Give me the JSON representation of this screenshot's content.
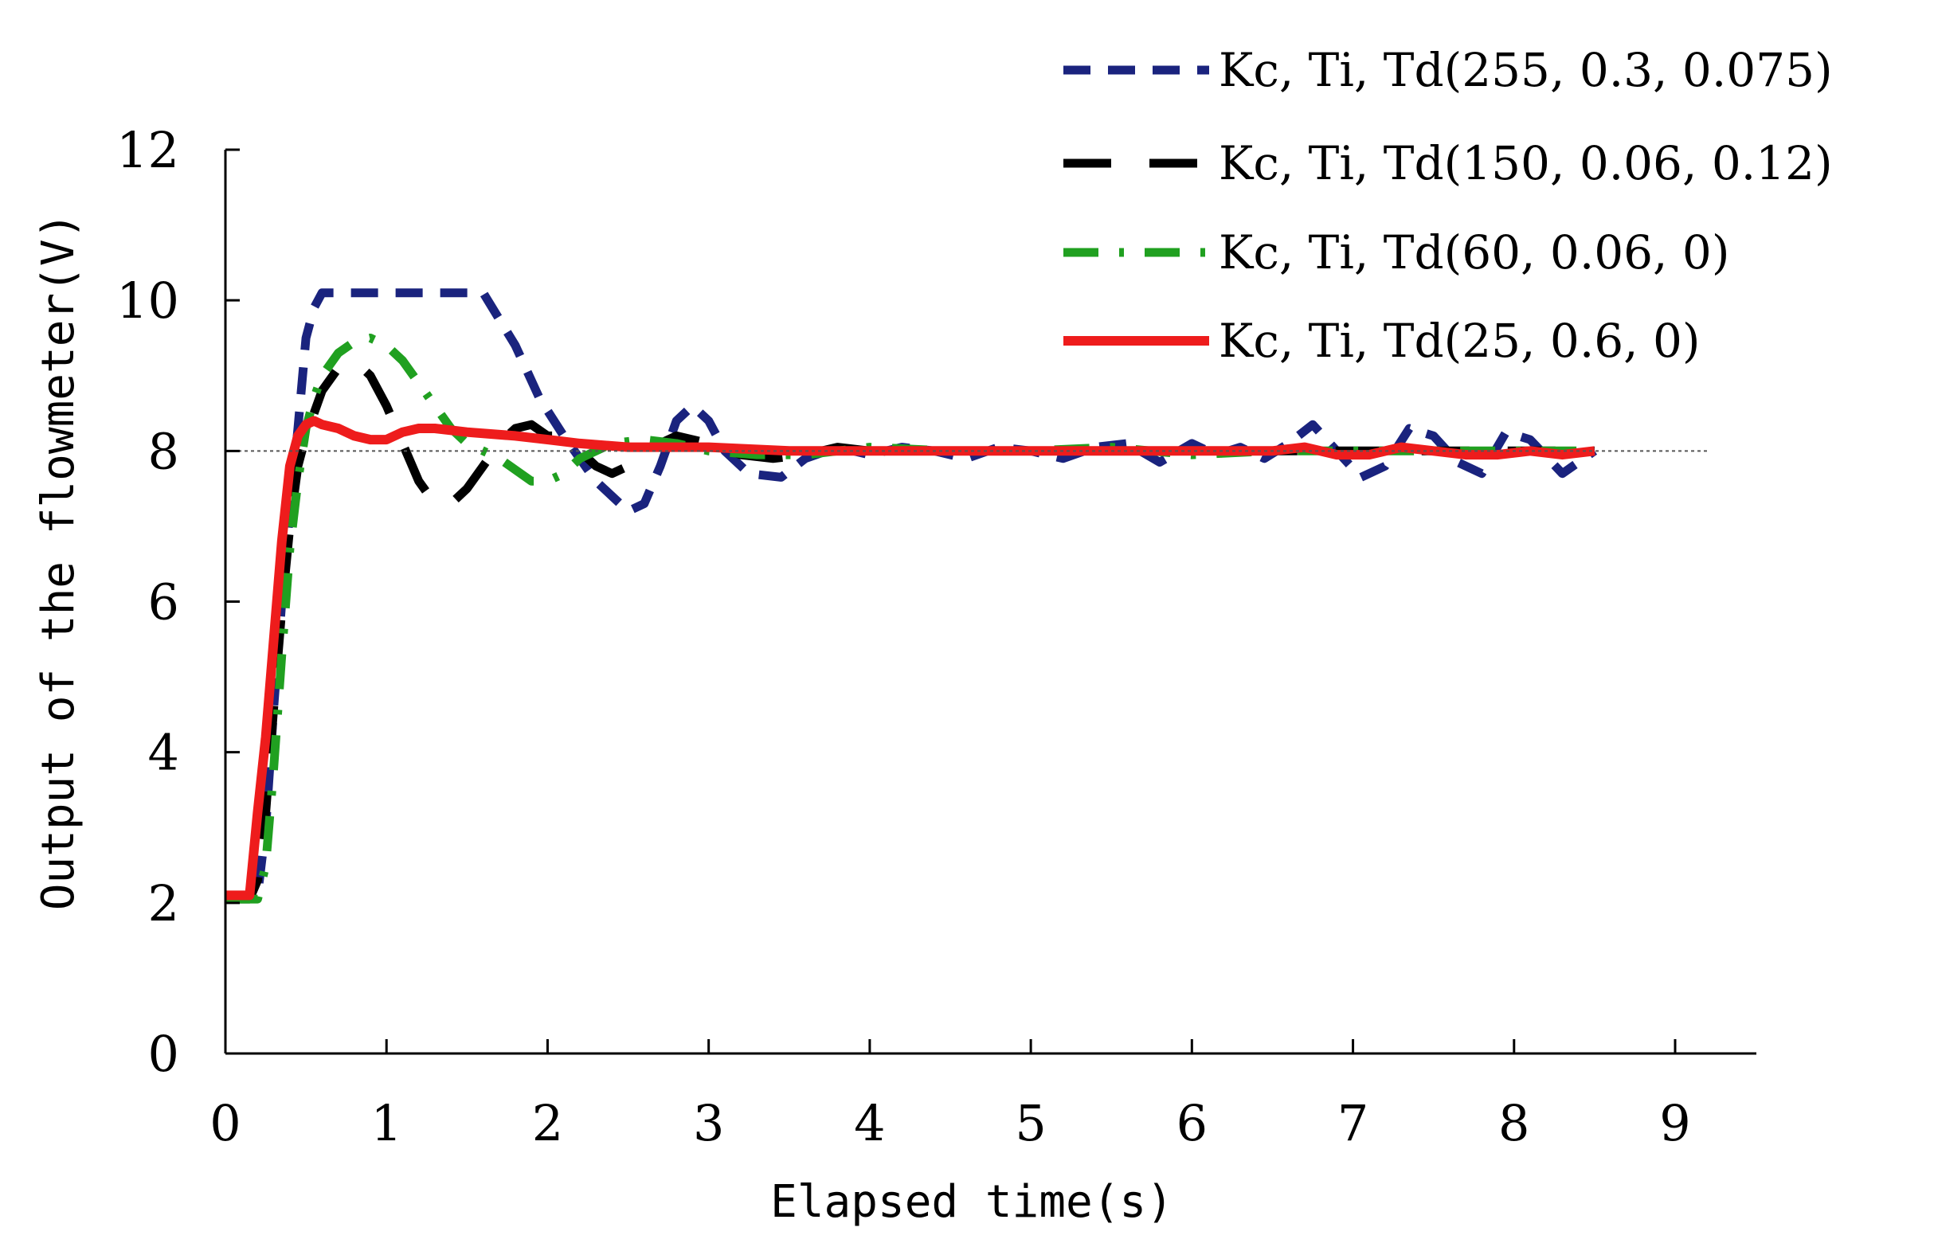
{
  "chart_data": {
    "type": "line",
    "title": "",
    "xlabel": "Elapsed time(s)",
    "ylabel": "Output of the flowmeter(V)",
    "xlim": [
      0,
      9.5
    ],
    "ylim": [
      0,
      12
    ],
    "xticks": [
      "0",
      "1",
      "2",
      "3",
      "4",
      "5",
      "6",
      "7",
      "8",
      "9"
    ],
    "yticks": [
      "0",
      "2",
      "4",
      "6",
      "8",
      "10",
      "12"
    ],
    "grid": false,
    "legend_position": "top-right",
    "reference_line": {
      "y": 8,
      "style": "dotted",
      "color": "#555555"
    },
    "series": [
      {
        "name": "Kc, Ti, Td(255, 0.3, 0.075)",
        "color": "#1a237e",
        "dash": "34 22",
        "x": [
          0,
          0.2,
          0.25,
          0.3,
          0.35,
          0.4,
          0.45,
          0.5,
          0.55,
          0.6,
          0.7,
          1.0,
          1.3,
          1.6,
          1.8,
          1.95,
          2.1,
          2.3,
          2.5,
          2.6,
          2.7,
          2.8,
          2.9,
          3.0,
          3.1,
          3.25,
          3.45,
          3.6,
          3.8,
          4.0,
          4.2,
          4.4,
          4.6,
          4.8,
          5.0,
          5.2,
          5.4,
          5.6,
          5.8,
          6.0,
          6.15,
          6.3,
          6.45,
          6.6,
          6.75,
          6.9,
          7.05,
          7.2,
          7.35,
          7.5,
          7.65,
          7.8,
          7.95,
          8.1,
          8.3,
          8.5
        ],
        "y": [
          2.1,
          2.1,
          3.0,
          4.6,
          6.0,
          7.2,
          8.3,
          9.5,
          9.9,
          10.1,
          10.1,
          10.1,
          10.1,
          10.1,
          9.4,
          8.7,
          8.2,
          7.6,
          7.2,
          7.3,
          7.8,
          8.4,
          8.6,
          8.4,
          8.0,
          7.7,
          7.65,
          7.9,
          8.05,
          7.95,
          8.05,
          8.0,
          7.9,
          8.05,
          8.0,
          7.9,
          8.05,
          8.1,
          7.85,
          8.1,
          7.95,
          8.05,
          7.9,
          8.1,
          8.35,
          8.0,
          7.65,
          7.8,
          8.3,
          8.2,
          7.85,
          7.7,
          8.25,
          8.15,
          7.7,
          8.0
        ]
      },
      {
        "name": "Kc, Ti, Td(150, 0.06, 0.12)",
        "color": "#000000",
        "dash": "60 48",
        "x": [
          0,
          0.15,
          0.2,
          0.25,
          0.3,
          0.35,
          0.4,
          0.45,
          0.5,
          0.55,
          0.6,
          0.7,
          0.8,
          0.9,
          1.0,
          1.1,
          1.2,
          1.3,
          1.4,
          1.5,
          1.6,
          1.7,
          1.8,
          1.9,
          2.0,
          2.1,
          2.2,
          2.3,
          2.4,
          2.5,
          2.6,
          2.8,
          3.0,
          3.2,
          3.4,
          3.6,
          3.8,
          4.0,
          4.5,
          5.0,
          5.5,
          6.0,
          6.5,
          7.0,
          7.5,
          8.0,
          8.5
        ],
        "y": [
          2.05,
          2.05,
          2.3,
          3.2,
          4.6,
          5.9,
          7.0,
          7.8,
          8.2,
          8.5,
          8.8,
          9.1,
          9.2,
          9.0,
          8.6,
          8.1,
          7.6,
          7.3,
          7.3,
          7.5,
          7.8,
          8.1,
          8.3,
          8.35,
          8.2,
          8.2,
          8.0,
          7.8,
          7.7,
          7.8,
          8.0,
          8.2,
          8.1,
          7.95,
          7.9,
          7.95,
          8.05,
          8.0,
          8.0,
          8.0,
          8.0,
          8.0,
          8.0,
          8.0,
          8.0,
          8.0,
          8.0
        ]
      },
      {
        "name": "Kc, Ti, Td(60, 0.06, 0)",
        "color": "#20a020",
        "dash": "44 26 6 26",
        "x": [
          0,
          0.2,
          0.25,
          0.3,
          0.35,
          0.4,
          0.45,
          0.5,
          0.55,
          0.6,
          0.7,
          0.8,
          0.9,
          1.0,
          1.1,
          1.2,
          1.3,
          1.4,
          1.5,
          1.6,
          1.7,
          1.8,
          1.9,
          2.0,
          2.1,
          2.2,
          2.4,
          2.6,
          2.8,
          3.0,
          3.3,
          3.6,
          4.0,
          4.5,
          5.0,
          5.5,
          6.0,
          6.5,
          7.0,
          7.5,
          8.0,
          8.5
        ],
        "y": [
          2.05,
          2.05,
          2.5,
          3.8,
          5.3,
          6.7,
          7.6,
          8.3,
          8.7,
          9.0,
          9.3,
          9.45,
          9.5,
          9.4,
          9.2,
          8.9,
          8.6,
          8.3,
          8.1,
          8.0,
          7.9,
          7.75,
          7.6,
          7.6,
          7.7,
          7.9,
          8.1,
          8.15,
          8.1,
          8.0,
          7.95,
          7.95,
          8.05,
          8.0,
          8.0,
          8.05,
          7.95,
          8.0,
          8.0,
          8.0,
          8.0,
          8.0
        ]
      },
      {
        "name": "Kc, Ti, Td(25, 0.6, 0)",
        "color": "#ee1c1c",
        "dash": "",
        "x": [
          0,
          0.15,
          0.2,
          0.25,
          0.3,
          0.35,
          0.4,
          0.45,
          0.5,
          0.55,
          0.6,
          0.7,
          0.8,
          0.9,
          1.0,
          1.1,
          1.2,
          1.3,
          1.5,
          1.8,
          2.0,
          2.2,
          2.5,
          2.8,
          3.0,
          3.5,
          4.0,
          4.5,
          5.0,
          5.5,
          6.0,
          6.5,
          6.7,
          6.9,
          7.1,
          7.3,
          7.5,
          7.7,
          7.9,
          8.1,
          8.3,
          8.5
        ],
        "y": [
          2.1,
          2.1,
          3.2,
          4.2,
          5.5,
          6.8,
          7.8,
          8.2,
          8.35,
          8.4,
          8.35,
          8.3,
          8.2,
          8.15,
          8.15,
          8.25,
          8.3,
          8.3,
          8.25,
          8.2,
          8.15,
          8.1,
          8.05,
          8.05,
          8.05,
          8.0,
          8.0,
          8.0,
          8.0,
          8.0,
          8.0,
          8.0,
          8.05,
          7.95,
          7.95,
          8.05,
          8.0,
          7.95,
          7.95,
          8.0,
          7.95,
          8.0
        ]
      }
    ]
  }
}
